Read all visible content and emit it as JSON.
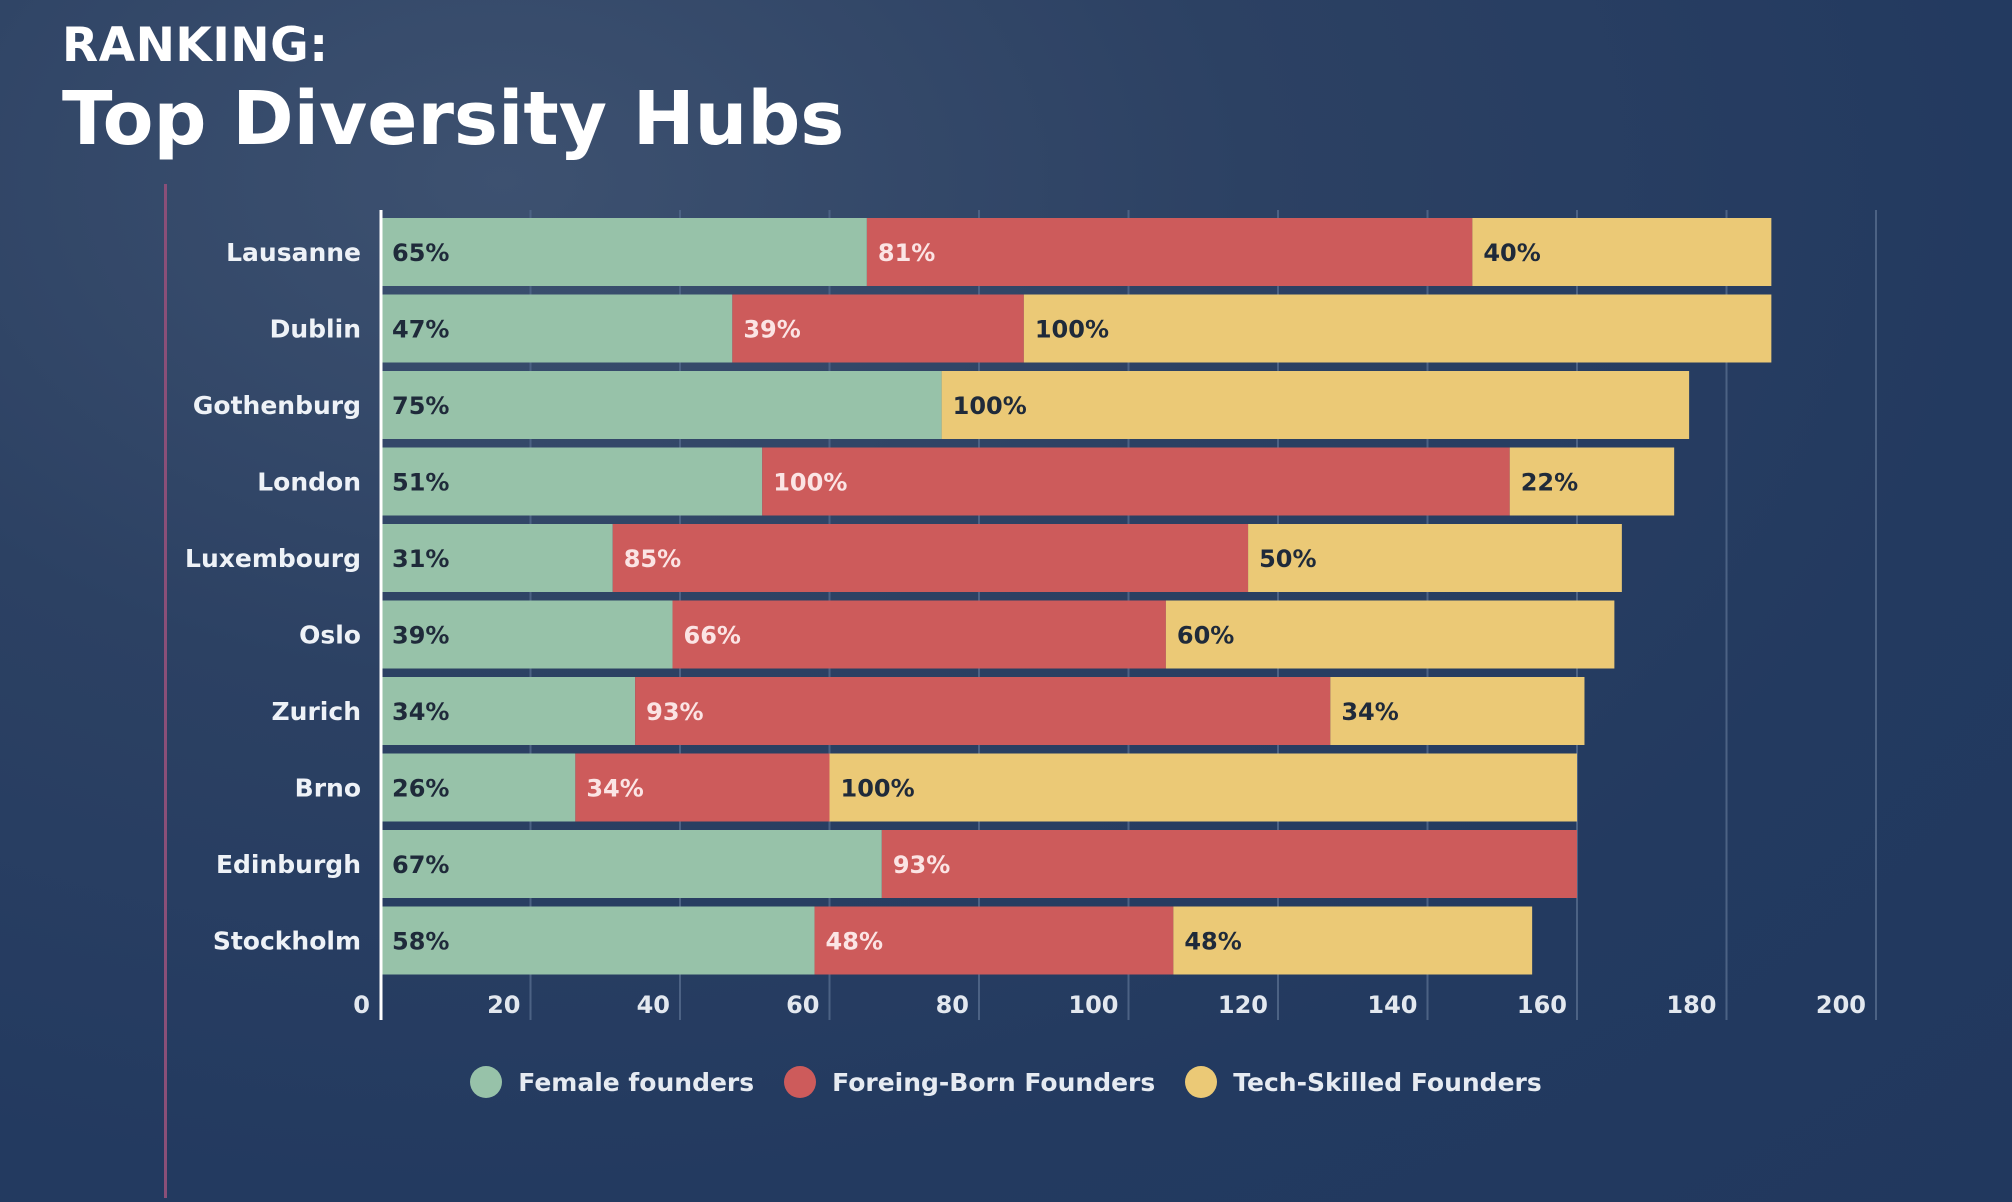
{
  "header": {
    "kicker": "RANKING:",
    "title": "Top Diversity Hubs"
  },
  "colors": {
    "female": "#97c2a9",
    "foreign": "#cd5b5b",
    "tech": "#ebc976",
    "grid": "#4c6284",
    "axis": "#ffffff",
    "label_dark": "#1f2a3a",
    "label_light": "#fbe4e4"
  },
  "legend": [
    {
      "label": "Female founders",
      "color": "#97c2a9"
    },
    {
      "label": "Foreing-Born Founders",
      "color": "#cd5b5b"
    },
    {
      "label": "Tech-Skilled Founders",
      "color": "#ebc976"
    }
  ],
  "chart_data": {
    "type": "bar",
    "orientation": "horizontal",
    "stacked": true,
    "categories": [
      "Lausanne",
      "Dublin",
      "Gothenburg",
      "London",
      "Luxembourg",
      "Oslo",
      "Zurich",
      "Brno",
      "Edinburgh",
      "Stockholm"
    ],
    "series": [
      {
        "name": "Female founders",
        "values": [
          65,
          47,
          75,
          51,
          31,
          39,
          34,
          26,
          67,
          58
        ],
        "labels": [
          "65%",
          "47%",
          "75%",
          "51%",
          "31%",
          "39%",
          "34%",
          "26%",
          "67%",
          "58%"
        ]
      },
      {
        "name": "Foreing-Born Founders",
        "values": [
          81,
          39,
          0,
          100,
          85,
          66,
          93,
          34,
          93,
          48
        ],
        "labels": [
          "81%",
          "39%",
          "",
          "100%",
          "85%",
          "66%",
          "93%",
          "34%",
          "93%",
          "48%"
        ]
      },
      {
        "name": "Tech-Skilled Founders",
        "values": [
          40,
          100,
          100,
          22,
          50,
          60,
          34,
          100,
          0,
          48
        ],
        "labels": [
          "40%",
          "100%",
          "100%",
          "22%",
          "50%",
          "60%",
          "34%",
          "100%",
          "",
          "48%"
        ]
      }
    ],
    "xlim": [
      0,
      200
    ],
    "xticks": [
      0,
      20,
      40,
      60,
      80,
      100,
      120,
      140,
      160,
      180,
      200
    ],
    "grid": true,
    "legend_position": "bottom"
  }
}
